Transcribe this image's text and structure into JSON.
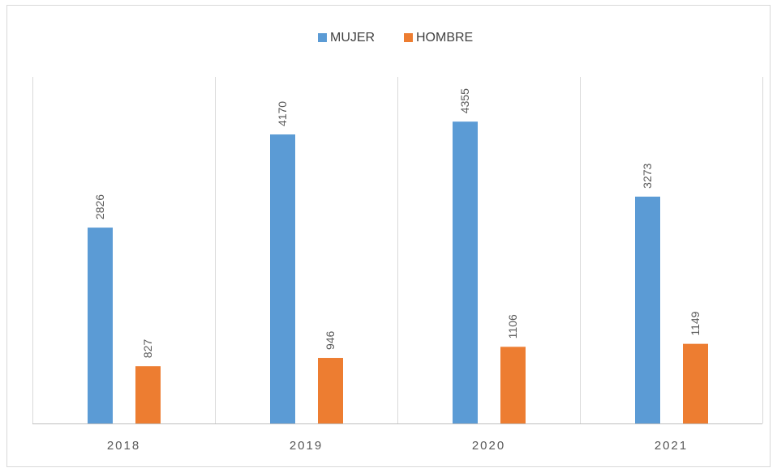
{
  "chart_data": {
    "type": "bar",
    "categories": [
      "2018",
      "2019",
      "2020",
      "2021"
    ],
    "series": [
      {
        "name": "MUJER",
        "color": "#5b9bd5",
        "values": [
          2826,
          4170,
          4355,
          3273
        ]
      },
      {
        "name": "HOMBRE",
        "color": "#ed7d31",
        "values": [
          827,
          946,
          1106,
          1149
        ]
      }
    ],
    "ylim": [
      0,
      5000
    ]
  }
}
